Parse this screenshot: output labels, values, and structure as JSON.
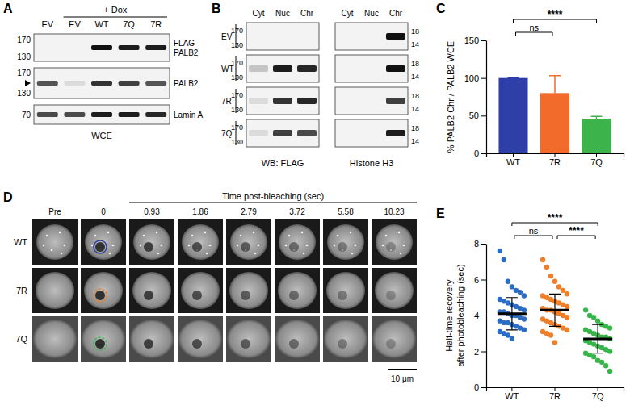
{
  "panels": {
    "A": {
      "letter": "A",
      "lanes": [
        "EV",
        "EV",
        "WT",
        "7Q",
        "7R"
      ],
      "treatment": "+ Dox",
      "blots": [
        {
          "label": [
            "FLAG-",
            "PALB2"
          ],
          "markers": [
            170,
            130
          ],
          "bands": [
            0,
            0,
            1,
            0.95,
            0.95
          ]
        },
        {
          "label": [
            "PALB2"
          ],
          "markers": [
            170,
            130
          ],
          "bands": [
            0.7,
            0.1,
            0.85,
            0.8,
            0.7
          ]
        },
        {
          "label": [
            "Lamin A"
          ],
          "markers": [
            70
          ],
          "bands": [
            0.75,
            0.75,
            0.95,
            0.95,
            0.9
          ]
        }
      ],
      "footer": "WCE"
    },
    "B": {
      "letter": "B",
      "columns": [
        "Cyt",
        "Nuc",
        "Chr"
      ],
      "groups": [
        {
          "label": "WB: FLAG",
          "markers": [
            170,
            130
          ]
        },
        {
          "label": "Histone H3",
          "markers": [
            18,
            14
          ]
        }
      ],
      "rows": [
        {
          "label": "EV",
          "bands": [
            [
              0,
              0,
              0
            ],
            [
              0,
              0,
              1
            ]
          ]
        },
        {
          "label": "WT",
          "bands": [
            [
              0.2,
              0.95,
              0.9
            ],
            [
              0,
              0,
              1
            ]
          ]
        },
        {
          "label": "7R",
          "bands": [
            [
              0.1,
              0.85,
              0.9
            ],
            [
              0,
              0,
              0.8
            ]
          ]
        },
        {
          "label": "7Q",
          "bands": [
            [
              0.1,
              0.8,
              0.75
            ],
            [
              0,
              0,
              0.95
            ]
          ]
        }
      ]
    },
    "D": {
      "letter": "D",
      "header": "Time post-bleaching (sec)",
      "columns": [
        "Pre",
        "0",
        "0.93",
        "1.86",
        "2.79",
        "3.72",
        "5.58",
        "10.23"
      ],
      "rows": [
        "WT",
        "7R",
        "7Q"
      ],
      "colors": [
        "#2f3fa8",
        "#f07f2a",
        "#38b54a"
      ],
      "scale_bar": "10 μm"
    }
  },
  "chart_data": [
    {
      "type": "bar",
      "panel_label": "C",
      "categories": [
        "WT",
        "7R",
        "7Q"
      ],
      "values": [
        100,
        80,
        46
      ],
      "errors": [
        0,
        23,
        3
      ],
      "colors": [
        "#2f3fa8",
        "#f26b2a",
        "#3cb44b"
      ],
      "ylabel": "% PALB2 Chr / PALB2 WCE",
      "ylim": [
        0,
        150
      ],
      "yticks": [
        0,
        50,
        100,
        150
      ],
      "annotations": [
        {
          "text": "ns",
          "from": "WT",
          "to": "7R"
        },
        {
          "text": "****",
          "from": "WT",
          "to": "7Q"
        }
      ]
    },
    {
      "type": "strip",
      "panel_label": "E",
      "categories": [
        "WT",
        "7R",
        "7Q"
      ],
      "values": [
        [
          7.6,
          7.1,
          5.9,
          5.6,
          5.4,
          5.3,
          5.1,
          4.9,
          4.8,
          4.7,
          4.6,
          4.5,
          4.4,
          4.3,
          4.2,
          4.2,
          4.1,
          4.0,
          4.0,
          3.9,
          3.8,
          3.7,
          3.6,
          3.6,
          3.5,
          3.4,
          3.3,
          3.2,
          3.1,
          3.0,
          2.9,
          2.7
        ],
        [
          7.1,
          6.7,
          6.2,
          5.9,
          5.6,
          5.4,
          5.2,
          5.1,
          5.0,
          4.9,
          4.8,
          4.7,
          4.6,
          4.5,
          4.4,
          4.3,
          4.3,
          4.2,
          4.1,
          4.0,
          3.9,
          3.8,
          3.7,
          3.6,
          3.5,
          3.4,
          3.3,
          3.2,
          3.1,
          3.0,
          2.9,
          2.5
        ],
        [
          4.3,
          4.0,
          3.9,
          3.7,
          3.5,
          3.4,
          3.3,
          3.2,
          3.1,
          3.0,
          2.9,
          2.8,
          2.8,
          2.7,
          2.6,
          2.5,
          2.4,
          2.3,
          2.2,
          2.1,
          2.0,
          1.9,
          1.8,
          1.7,
          1.5,
          1.4,
          1.2,
          0.9
        ]
      ],
      "colors": [
        "#2b6cc4",
        "#f07f2a",
        "#38b54a"
      ],
      "medians": [
        4.1,
        4.3,
        2.7
      ],
      "errors": [
        0.9,
        0.9,
        0.8
      ],
      "ylabel": [
        "Half-time recovery",
        "after photobleaching (sec)"
      ],
      "ylim": [
        0,
        8
      ],
      "yticks": [
        0,
        2,
        4,
        6,
        8
      ],
      "annotations": [
        {
          "text": "****",
          "from": "WT",
          "to": "7Q"
        },
        {
          "text": "ns",
          "from": "WT",
          "to": "7R"
        },
        {
          "text": "****",
          "from": "7R",
          "to": "7Q"
        }
      ]
    }
  ]
}
